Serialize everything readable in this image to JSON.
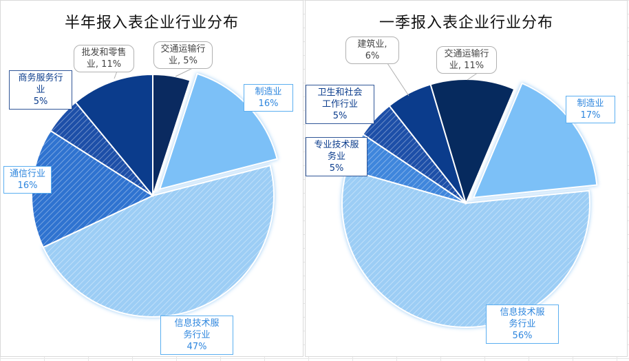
{
  "chart_data": [
    {
      "type": "pie",
      "title": "半年报入表企业行业分布",
      "slices": [
        {
          "name": "制造业",
          "value": 16,
          "label": "制造业\n16%",
          "color": "#7cc0f7",
          "pattern": "solid",
          "exploded": true
        },
        {
          "name": "信息技术服务行业",
          "value": 47,
          "label": "信息技术服\n务行业\n47%",
          "color": "#9ccdf5",
          "pattern": "hatch",
          "exploded": false
        },
        {
          "name": "通信行业",
          "value": 16,
          "label": "通信行业\n16%",
          "color": "#2f73d0",
          "pattern": "hatch",
          "exploded": false
        },
        {
          "name": "商务服务行业",
          "value": 5,
          "label": "商务服务行\n业\n5%",
          "color": "#1d4fa8",
          "pattern": "hatch",
          "exploded": false
        },
        {
          "name": "批发和零售业",
          "value": 11,
          "label": "批发和零售\n业, 11%",
          "color": "#0b3c8c",
          "pattern": "solid",
          "exploded": false
        },
        {
          "name": "交通运输行业",
          "value": 5,
          "label": "交通运输行\n业, 5%",
          "color": "#0a2a60",
          "pattern": "solid",
          "exploded": false
        }
      ]
    },
    {
      "type": "pie",
      "title": "一季报入表企业行业分布",
      "slices": [
        {
          "name": "制造业",
          "value": 17,
          "label": "制造业\n17%",
          "color": "#7cc0f7",
          "pattern": "solid",
          "exploded": true
        },
        {
          "name": "信息技术服务行业",
          "value": 56,
          "label": "信息技术服\n务行业\n56%",
          "color": "#9ccdf5",
          "pattern": "hatch",
          "exploded": false
        },
        {
          "name": "专业技术服务业",
          "value": 5,
          "label": "专业技术服\n务业\n5%",
          "color": "#3f86dc",
          "pattern": "hatch",
          "exploded": false
        },
        {
          "name": "卫生和社会工作行业",
          "value": 5,
          "label": "卫生和社会\n工作行业\n5%",
          "color": "#1d4fa8",
          "pattern": "hatch",
          "exploded": false
        },
        {
          "name": "建筑业",
          "value": 6,
          "label": "建筑业,\n6%",
          "color": "#0b3c8c",
          "pattern": "solid",
          "exploded": false
        },
        {
          "name": "交通运输行业",
          "value": 11,
          "label": "交通运输行\n业, 11%",
          "color": "#062a5e",
          "pattern": "solid",
          "exploded": false
        }
      ]
    }
  ]
}
